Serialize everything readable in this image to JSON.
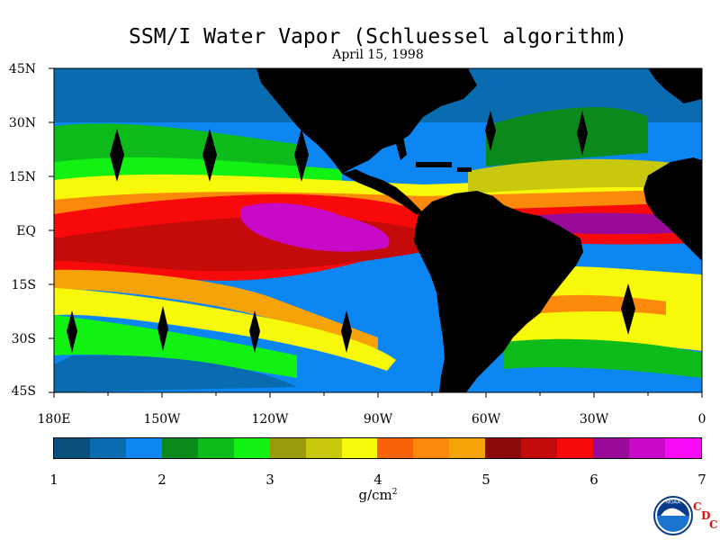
{
  "title": "SSM/I Water Vapor (Schluessel algorithm)",
  "subtitle": "April 15, 1998",
  "lat_labels": [
    "45N",
    "30N",
    "15N",
    "EQ",
    "15S",
    "30S",
    "45S"
  ],
  "lon_labels": [
    "180E",
    "150W",
    "120W",
    "90W",
    "60W",
    "30W",
    "0"
  ],
  "colorbar": {
    "tick_labels": [
      "1",
      "2",
      "3",
      "4",
      "5",
      "6",
      "7"
    ],
    "units_text": "g/cm",
    "units_exp": "2",
    "colors": [
      "#0b4f7c",
      "#0a6cb0",
      "#0b86f2",
      "#0a8a1a",
      "#0dbb1a",
      "#12f212",
      "#9a9a0c",
      "#c8c80c",
      "#f8f80a",
      "#f8630a",
      "#fb8a0a",
      "#f6a30a",
      "#8c0a0a",
      "#c50a0a",
      "#f80a0a",
      "#9a0a9a",
      "#c80ac8",
      "#f80af8"
    ]
  },
  "legend_scale": {
    "min": 1,
    "max": 7
  },
  "logo": {
    "agency": "NOAA",
    "c1": "C",
    "c2": "D",
    "c3": "C"
  }
}
